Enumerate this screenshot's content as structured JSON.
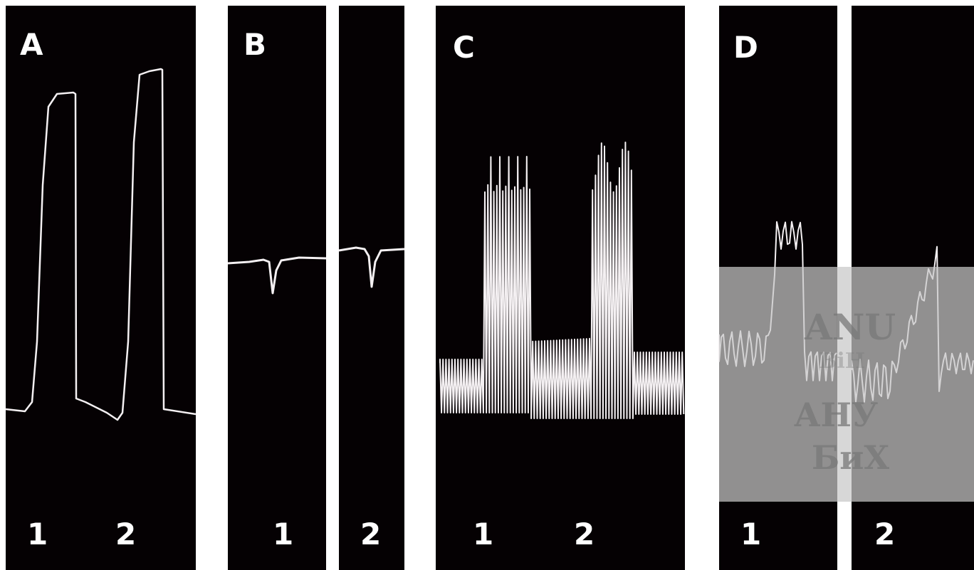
{
  "panels": [
    {
      "label": "A",
      "numbers": [
        "1",
        "2"
      ]
    },
    {
      "label": "B",
      "numbers": [
        "1"
      ]
    },
    {
      "numbers": [
        "2"
      ]
    },
    {
      "label": "C",
      "numbers": [
        "1",
        "2"
      ]
    },
    {
      "label": "D",
      "numbers": [
        "1"
      ]
    },
    {
      "numbers": [
        "2"
      ]
    }
  ],
  "watermark": {
    "lines": [
      "ANU",
      "BiH",
      "АНУ",
      "БиХ"
    ]
  }
}
